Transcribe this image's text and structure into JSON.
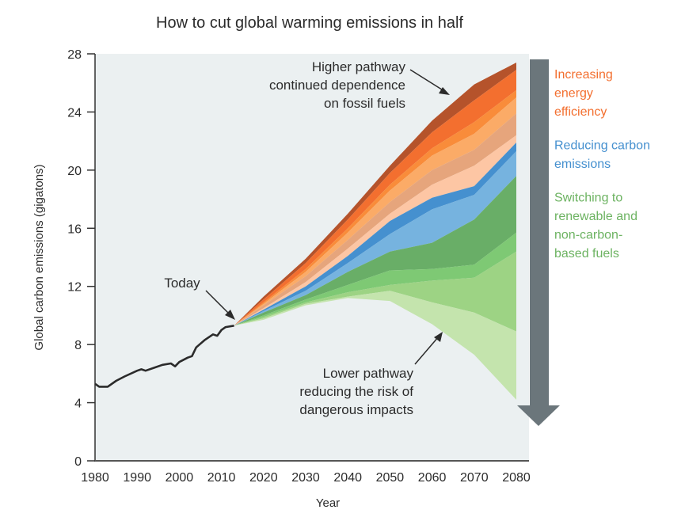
{
  "chart_data": {
    "type": "area",
    "title": "How to cut global warming emissions in half",
    "xlabel": "Year",
    "ylabel": "Global carbon emissions (gigatons)",
    "xlim": [
      1980,
      2083
    ],
    "ylim": [
      0,
      28
    ],
    "x_ticks": [
      1980,
      1990,
      2000,
      2010,
      2020,
      2030,
      2040,
      2050,
      2060,
      2070,
      2080
    ],
    "y_ticks": [
      0,
      4,
      8,
      12,
      16,
      20,
      24,
      28
    ],
    "grid": false,
    "historical": {
      "name": "Historical emissions",
      "color": "#2b2b2b",
      "x": [
        1980,
        1981,
        1983,
        1985,
        1987,
        1990,
        1991,
        1992,
        1994,
        1996,
        1998,
        1999,
        2000,
        2002,
        2003,
        2004,
        2006,
        2008,
        2009,
        2010,
        2011,
        2013
      ],
      "y": [
        5.3,
        5.1,
        5.1,
        5.5,
        5.8,
        6.2,
        6.3,
        6.2,
        6.4,
        6.6,
        6.7,
        6.5,
        6.8,
        7.1,
        7.2,
        7.8,
        8.3,
        8.7,
        8.6,
        9.0,
        9.2,
        9.3
      ]
    },
    "projection_years": [
      2013,
      2020,
      2030,
      2040,
      2050,
      2060,
      2070,
      2080
    ],
    "boundaries": [
      [
        9.3,
        11.3,
        13.9,
        17.0,
        20.3,
        23.4,
        25.9,
        27.4
      ],
      [
        9.3,
        11.1,
        13.6,
        16.6,
        19.8,
        22.6,
        24.8,
        26.9
      ],
      [
        9.3,
        10.9,
        13.2,
        16.0,
        19.0,
        21.5,
        23.3,
        25.5
      ],
      [
        9.3,
        10.8,
        13.0,
        15.7,
        18.6,
        21.0,
        22.5,
        25.0
      ],
      [
        9.3,
        10.7,
        12.7,
        15.2,
        17.8,
        20.0,
        21.4,
        23.9
      ],
      [
        9.3,
        10.5,
        12.3,
        14.6,
        17.0,
        19.0,
        20.3,
        22.4
      ],
      [
        9.3,
        10.4,
        12.0,
        14.1,
        16.5,
        18.1,
        18.9,
        21.9
      ],
      [
        9.3,
        10.3,
        11.7,
        13.6,
        15.6,
        17.3,
        18.3,
        21.3
      ],
      [
        9.3,
        10.2,
        11.4,
        13.0,
        14.4,
        15.0,
        16.6,
        19.6
      ],
      [
        9.3,
        10.0,
        11.1,
        12.1,
        13.1,
        13.2,
        13.5,
        15.7
      ],
      [
        9.3,
        9.9,
        10.9,
        11.6,
        12.1,
        12.4,
        12.6,
        14.4
      ],
      [
        9.3,
        9.8,
        10.8,
        11.3,
        11.7,
        10.9,
        10.2,
        8.9
      ],
      [
        9.3,
        9.7,
        10.7,
        11.2,
        11.0,
        9.4,
        7.3,
        4.2
      ]
    ],
    "bands": [
      {
        "name": "wedge-1",
        "group": "Increasing energy efficiency",
        "color": "#b5532b"
      },
      {
        "name": "wedge-2",
        "group": "Increasing energy efficiency",
        "color": "#f36f2f"
      },
      {
        "name": "wedge-3",
        "group": "Increasing energy efficiency",
        "color": "#f98c3a"
      },
      {
        "name": "wedge-4",
        "group": "Increasing energy efficiency",
        "color": "#fbab67"
      },
      {
        "name": "wedge-5",
        "group": "Increasing energy efficiency",
        "color": "#e6a57c"
      },
      {
        "name": "wedge-6",
        "group": "Increasing energy efficiency",
        "color": "#fdc6a4"
      },
      {
        "name": "wedge-7",
        "group": "Reducing carbon emissions",
        "color": "#4590cf"
      },
      {
        "name": "wedge-8",
        "group": "Reducing carbon emissions",
        "color": "#76b3df"
      },
      {
        "name": "wedge-9",
        "group": "Switching to renewable and non-carbon-based fuels",
        "color": "#69ae67"
      },
      {
        "name": "wedge-10",
        "group": "Switching to renewable and non-carbon-based fuels",
        "color": "#7ec974"
      },
      {
        "name": "wedge-11",
        "group": "Switching to renewable and non-carbon-based fuels",
        "color": "#9dd384"
      },
      {
        "name": "wedge-12",
        "group": "Switching to renewable and non-carbon-based fuels",
        "color": "#c4e4ad"
      }
    ],
    "annotations": [
      {
        "name": "today",
        "lines": [
          "Today"
        ],
        "points_to": {
          "x": 2013,
          "y": 9.3
        }
      },
      {
        "name": "higher-pathway",
        "lines": [
          "Higher pathway",
          "continued dependence",
          "on fossil fuels"
        ],
        "points_to": {
          "x": 2066,
          "y": 24.6
        }
      },
      {
        "name": "lower-pathway",
        "lines": [
          "Lower pathway",
          "reducing the risk of",
          "dangerous impacts"
        ],
        "points_to": {
          "x": 2062,
          "y": 8.8
        }
      }
    ],
    "legend": {
      "placement": "right",
      "entries": [
        {
          "lines": [
            "Increasing",
            "energy",
            "efficiency"
          ],
          "color": "#f36f2f"
        },
        {
          "lines": [
            "Reducing carbon",
            "emissions"
          ],
          "color": "#4590cf"
        },
        {
          "lines": [
            "Switching to",
            "renewable and",
            "non-carbon-",
            "based fuels"
          ],
          "color": "#6db362"
        }
      ]
    },
    "arrow_color": "#6b767b",
    "panel_background": "#ebf0f1"
  }
}
